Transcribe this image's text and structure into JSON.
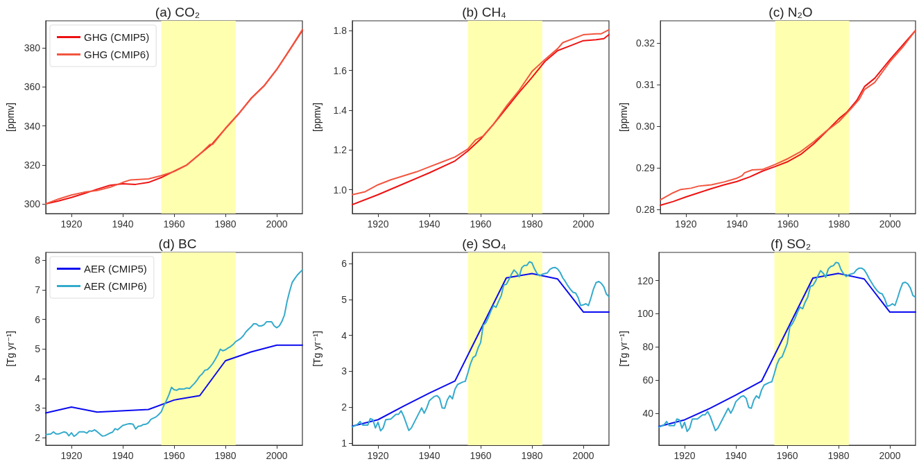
{
  "chart_data": [
    {
      "type": "line",
      "title": "(a) CO₂",
      "ylabel": "[ppmv]",
      "xlim": [
        1910,
        2010
      ],
      "xticks": [
        1920,
        1940,
        1960,
        1980,
        2000
      ],
      "ylim": [
        295,
        394
      ],
      "yticks": [
        300,
        320,
        340,
        360,
        380
      ],
      "grid": false,
      "legend": "top left",
      "marker": "none",
      "line_style": "solid",
      "bands": [
        {
          "axis": "x",
          "from": 1955,
          "to": 1984,
          "color": "#ffffb0"
        }
      ],
      "series": [
        {
          "name": "GHG (CMIP5)",
          "color": "#ee1111",
          "x": [
            1910,
            1915,
            1920,
            1925,
            1930,
            1935,
            1940,
            1945,
            1950,
            1955,
            1960,
            1965,
            1970,
            1975,
            1980,
            1985,
            1990,
            1995,
            2000,
            2005,
            2010
          ],
          "values": [
            300,
            301.5,
            303.3,
            305.3,
            307.5,
            309.5,
            310.3,
            310.0,
            311.0,
            313.5,
            316.8,
            320,
            325.5,
            331,
            338.7,
            346,
            354.2,
            360.5,
            369,
            379,
            389
          ]
        },
        {
          "name": "GHG (CMIP6)",
          "color": "#f2553f",
          "x": [
            1910,
            1915,
            1920,
            1925,
            1930,
            1935,
            1940,
            1943,
            1950,
            1955,
            1960,
            1965,
            1970,
            1974,
            1975,
            1980,
            1985,
            1990,
            1995,
            2000,
            2005,
            2010
          ],
          "values": [
            300,
            302.5,
            304.5,
            306,
            306.8,
            308.5,
            311,
            312.3,
            312.8,
            314.5,
            316.6,
            320,
            325.5,
            330.5,
            330.5,
            338.7,
            346,
            354,
            360.5,
            369,
            379,
            389.5
          ]
        }
      ]
    },
    {
      "type": "line",
      "title": "(b) CH₄",
      "ylabel": "[ppmv]",
      "xlim": [
        1910,
        2010
      ],
      "xticks": [
        1920,
        1940,
        1960,
        1980,
        2000
      ],
      "ylim": [
        0.88,
        1.85
      ],
      "yticks": [
        {
          "value": 1,
          "label": "1.0"
        },
        1.2,
        1.4,
        1.6,
        1.8
      ],
      "grid": false,
      "marker": "none",
      "line_style": "solid",
      "bands": [
        {
          "axis": "x",
          "from": 1955,
          "to": 1984,
          "color": "#ffffb0"
        }
      ],
      "series": [
        {
          "color": "#ee1111",
          "x": [
            1910,
            1920,
            1930,
            1940,
            1950,
            1955,
            1960,
            1965,
            1970,
            1975,
            1980,
            1985,
            1990,
            1995,
            2000,
            2005,
            2008,
            2010
          ],
          "values": [
            0.925,
            0.975,
            1.03,
            1.085,
            1.145,
            1.195,
            1.255,
            1.33,
            1.41,
            1.49,
            1.565,
            1.645,
            1.7,
            1.725,
            1.75,
            1.755,
            1.76,
            1.78
          ]
        },
        {
          "color": "#f2553f",
          "x": [
            1910,
            1915,
            1920,
            1925,
            1930,
            1935,
            1940,
            1945,
            1950,
            1955,
            1958,
            1961,
            1965,
            1970,
            1975,
            1980,
            1985,
            1990,
            1992,
            1995,
            2000,
            2005,
            2007,
            2010
          ],
          "values": [
            0.975,
            0.99,
            1.025,
            1.05,
            1.07,
            1.09,
            1.115,
            1.14,
            1.165,
            1.205,
            1.25,
            1.27,
            1.33,
            1.42,
            1.5,
            1.595,
            1.655,
            1.71,
            1.74,
            1.755,
            1.78,
            1.785,
            1.785,
            1.805
          ]
        }
      ]
    },
    {
      "type": "line",
      "title": "(c) N₂O",
      "ylabel": "[ppmv]",
      "xlim": [
        1910,
        2010
      ],
      "xticks": [
        1920,
        1940,
        1960,
        1980,
        2000
      ],
      "ylim": [
        0.279,
        0.3253
      ],
      "yticks": [
        0.28,
        0.29,
        {
          "value": 0.3,
          "label": "0.30"
        },
        0.31,
        0.32
      ],
      "grid": false,
      "marker": "none",
      "line_style": "solid",
      "bands": [
        {
          "axis": "x",
          "from": 1955,
          "to": 1984,
          "color": "#ffffb0"
        }
      ],
      "series": [
        {
          "color": "#ee1111",
          "x": [
            1910,
            1915,
            1920,
            1925,
            1930,
            1935,
            1940,
            1945,
            1950,
            1955,
            1960,
            1965,
            1970,
            1975,
            1980,
            1983,
            1987,
            1990,
            1994,
            2000,
            2005,
            2010
          ],
          "values": [
            0.281,
            0.2819,
            0.283,
            0.284,
            0.285,
            0.2859,
            0.2867,
            0.2878,
            0.2892,
            0.2903,
            0.2915,
            0.2932,
            0.2957,
            0.2987,
            0.3018,
            0.3033,
            0.3062,
            0.3095,
            0.3115,
            0.316,
            0.3195,
            0.323
          ]
        },
        {
          "color": "#f2553f",
          "x": [
            1910,
            1915,
            1918,
            1922,
            1925,
            1930,
            1935,
            1940,
            1942,
            1943,
            1946,
            1950,
            1955,
            1960,
            1965,
            1970,
            1975,
            1980,
            1985,
            1988,
            1990,
            1994,
            2000,
            2005,
            2010
          ],
          "values": [
            0.2823,
            0.284,
            0.2848,
            0.2851,
            0.2856,
            0.2859,
            0.2866,
            0.2875,
            0.2881,
            0.2888,
            0.2895,
            0.2896,
            0.2908,
            0.2922,
            0.2939,
            0.2962,
            0.2988,
            0.3011,
            0.3044,
            0.3065,
            0.3088,
            0.3105,
            0.3155,
            0.319,
            0.323
          ]
        }
      ]
    },
    {
      "type": "line",
      "title": "(d) BC",
      "ylabel": "[Tg yr⁻¹]",
      "xlim": [
        1910,
        2010
      ],
      "xticks": [
        1920,
        1940,
        1960,
        1980,
        2000
      ],
      "ylim": [
        1.74,
        8.27
      ],
      "yticks": [
        2,
        3,
        4,
        5,
        6,
        7,
        8
      ],
      "grid": false,
      "legend": "top left",
      "marker": "none",
      "line_style": "solid",
      "bands": [
        {
          "axis": "x",
          "from": 1955,
          "to": 1984,
          "color": "#ffffb0"
        }
      ],
      "series": [
        {
          "name": "AER (CMIP5)",
          "color": "#0a0af0",
          "x": [
            1910,
            1920,
            1930,
            1950,
            1960,
            1970,
            1980,
            1990,
            2000,
            2010
          ],
          "values": [
            2.83,
            3.03,
            2.86,
            2.95,
            3.27,
            3.42,
            4.6,
            4.9,
            5.13,
            5.13
          ]
        },
        {
          "name": "AER (CMIP6)",
          "color": "#33aacc",
          "x": [
            1910,
            1912,
            1913,
            1914,
            1915,
            1917,
            1918,
            1919,
            1920,
            1921,
            1922,
            1923,
            1925,
            1926,
            1927,
            1928,
            1929,
            1930,
            1932,
            1933,
            1935,
            1936,
            1937,
            1938,
            1940,
            1942,
            1943,
            1944,
            1945,
            1946,
            1947,
            1948,
            1949,
            1950,
            1951,
            1953,
            1954,
            1955,
            1956,
            1957,
            1958,
            1959,
            1960,
            1961,
            1962,
            1963,
            1964,
            1965,
            1966,
            1967,
            1968,
            1969,
            1970,
            1971,
            1972,
            1973,
            1974,
            1975,
            1976,
            1977,
            1978,
            1979,
            1980,
            1981,
            1982,
            1983,
            1984,
            1985,
            1986,
            1987,
            1988,
            1989,
            1990,
            1991,
            1992,
            1993,
            1994,
            1995,
            1996,
            1997,
            1998,
            1999,
            2000,
            2001,
            2002,
            2003,
            2004,
            2005,
            2006,
            2007,
            2008,
            2010
          ],
          "values": [
            2.1,
            2.12,
            2.19,
            2.12,
            2.12,
            2.19,
            2.17,
            2.06,
            2.16,
            2.04,
            2.1,
            2.19,
            2.19,
            2.15,
            2.23,
            2.21,
            2.26,
            2.2,
            2.05,
            2.06,
            2.15,
            2.18,
            2.3,
            2.26,
            2.41,
            2.46,
            2.47,
            2.45,
            2.29,
            2.38,
            2.39,
            2.44,
            2.45,
            2.5,
            2.62,
            2.7,
            2.78,
            2.87,
            3.08,
            3.25,
            3.45,
            3.7,
            3.62,
            3.6,
            3.65,
            3.64,
            3.65,
            3.68,
            3.66,
            3.75,
            3.84,
            3.95,
            4.08,
            4.16,
            4.28,
            4.3,
            4.39,
            4.5,
            4.64,
            4.8,
            4.99,
            4.94,
            4.97,
            5.03,
            5.08,
            5.15,
            5.25,
            5.3,
            5.36,
            5.45,
            5.58,
            5.67,
            5.75,
            5.85,
            5.85,
            5.78,
            5.78,
            5.82,
            5.92,
            5.92,
            5.92,
            5.78,
            5.72,
            5.78,
            5.93,
            6.15,
            6.6,
            6.95,
            7.25,
            7.38,
            7.5,
            7.68
          ]
        }
      ]
    },
    {
      "type": "line",
      "title": "(e) SO₄",
      "ylabel": "[Tg yr⁻¹]",
      "xlim": [
        1910,
        2010
      ],
      "xticks": [
        1920,
        1940,
        1960,
        1980,
        2000
      ],
      "ylim": [
        0.94,
        6.31
      ],
      "yticks": [
        1,
        2,
        3,
        4,
        5,
        6
      ],
      "grid": false,
      "marker": "none",
      "line_style": "solid",
      "bands": [
        {
          "axis": "x",
          "from": 1955,
          "to": 1984,
          "color": "#ffffb0"
        }
      ],
      "series": [
        {
          "color": "#0a0af0",
          "x": [
            1910,
            1920,
            1930,
            1940,
            1950,
            1970,
            1980,
            1990,
            2000,
            2010
          ],
          "values": [
            1.47,
            1.65,
            2.03,
            2.39,
            2.73,
            5.6,
            5.72,
            5.57,
            4.65,
            4.65
          ]
        },
        {
          "color": "#33aacc",
          "x": [
            1910,
            1912,
            1913,
            1914,
            1916,
            1917,
            1918,
            1919,
            1920,
            1921,
            1922,
            1923,
            1925,
            1927,
            1928,
            1929,
            1930,
            1932,
            1933,
            1935,
            1937,
            1938,
            1939,
            1940,
            1942,
            1943,
            1944,
            1945,
            1946,
            1947,
            1948,
            1949,
            1950,
            1951,
            1953,
            1954,
            1955,
            1956,
            1957,
            1958,
            1959,
            1960,
            1961,
            1962,
            1963,
            1964,
            1965,
            1966,
            1967,
            1968,
            1969,
            1970,
            1971,
            1972,
            1973,
            1974,
            1975,
            1976,
            1977,
            1978,
            1979,
            1980,
            1981,
            1982,
            1983,
            1984,
            1985,
            1986,
            1987,
            1988,
            1989,
            1990,
            1991,
            1992,
            1993,
            1994,
            1995,
            1996,
            1997,
            1998,
            1999,
            2000,
            2001,
            2002,
            2003,
            2004,
            2005,
            2006,
            2007,
            2008,
            2009,
            2010
          ],
          "values": [
            1.45,
            1.52,
            1.6,
            1.5,
            1.5,
            1.68,
            1.65,
            1.42,
            1.58,
            1.34,
            1.42,
            1.65,
            1.67,
            1.8,
            1.8,
            1.9,
            1.75,
            1.35,
            1.42,
            1.7,
            1.98,
            1.83,
            1.98,
            2.18,
            2.3,
            2.32,
            2.25,
            1.98,
            1.97,
            2.2,
            2.32,
            2.23,
            2.5,
            2.63,
            2.7,
            2.72,
            2.95,
            3.2,
            3.38,
            3.43,
            3.65,
            3.8,
            4.28,
            4.35,
            4.5,
            4.68,
            4.83,
            4.78,
            4.95,
            5.1,
            5.4,
            5.42,
            5.55,
            5.7,
            5.82,
            5.75,
            5.63,
            5.88,
            5.95,
            5.95,
            6.05,
            6.02,
            5.85,
            5.72,
            5.66,
            5.7,
            5.72,
            5.74,
            5.84,
            5.88,
            5.89,
            5.85,
            5.75,
            5.6,
            5.5,
            5.38,
            5.28,
            5.2,
            5.18,
            5.05,
            4.83,
            4.85,
            4.88,
            4.83,
            5.05,
            5.3,
            5.47,
            5.5,
            5.45,
            5.35,
            5.15,
            5.08
          ]
        }
      ]
    },
    {
      "type": "line",
      "title": "(f) SO₂",
      "ylabel": "[Tg yr⁻¹]",
      "xlim": [
        1910,
        2010
      ],
      "xticks": [
        1920,
        1940,
        1960,
        1980,
        2000
      ],
      "ylim": [
        20.7,
        137
      ],
      "yticks": [
        40,
        60,
        80,
        100,
        120
      ],
      "grid": false,
      "marker": "none",
      "line_style": "solid",
      "bands": [
        {
          "axis": "x",
          "from": 1955,
          "to": 1984,
          "color": "#ffffb0"
        }
      ],
      "series": [
        {
          "color": "#0a0af0",
          "x": [
            1910,
            1920,
            1930,
            1940,
            1950,
            1970,
            1980,
            1990,
            2000,
            2010
          ],
          "values": [
            32,
            36,
            43,
            51,
            59.3,
            121.5,
            124.3,
            121,
            101,
            101
          ]
        },
        {
          "color": "#33aacc",
          "x": [
            1910,
            1912,
            1913,
            1914,
            1916,
            1917,
            1918,
            1919,
            1920,
            1921,
            1922,
            1923,
            1925,
            1927,
            1928,
            1929,
            1930,
            1932,
            1933,
            1935,
            1937,
            1938,
            1939,
            1940,
            1942,
            1943,
            1944,
            1945,
            1946,
            1947,
            1948,
            1949,
            1950,
            1951,
            1953,
            1954,
            1955,
            1956,
            1957,
            1958,
            1959,
            1960,
            1961,
            1962,
            1963,
            1964,
            1965,
            1966,
            1967,
            1968,
            1969,
            1970,
            1971,
            1972,
            1973,
            1974,
            1975,
            1976,
            1977,
            1978,
            1979,
            1980,
            1981,
            1982,
            1983,
            1984,
            1985,
            1986,
            1987,
            1988,
            1989,
            1990,
            1991,
            1992,
            1993,
            1994,
            1995,
            1996,
            1997,
            1998,
            1999,
            2000,
            2001,
            2002,
            2003,
            2004,
            2005,
            2006,
            2007,
            2008,
            2009,
            2010
          ],
          "values": [
            31.5,
            33,
            35,
            32.5,
            32.5,
            36.5,
            36,
            31,
            34.5,
            29,
            31,
            36.5,
            36.5,
            39,
            39,
            41,
            38,
            29.5,
            31,
            37,
            43,
            40,
            43,
            47,
            50,
            50.5,
            49,
            43.5,
            43,
            48,
            50.5,
            49,
            54,
            57,
            58.5,
            59,
            64,
            69.5,
            73,
            74,
            78,
            82,
            92,
            94,
            97,
            101,
            104,
            103,
            107,
            110,
            116.5,
            117,
            119.5,
            123,
            126,
            124.5,
            122,
            127,
            128.5,
            129,
            131,
            130.5,
            126.5,
            124,
            122.5,
            123.5,
            124,
            124.5,
            126.5,
            127.5,
            127.5,
            126.5,
            124,
            121,
            118.5,
            116,
            114,
            112.5,
            112,
            109,
            104.5,
            105,
            106,
            105,
            109.5,
            114.5,
            118.5,
            119,
            118,
            115.5,
            111,
            110
          ]
        }
      ]
    }
  ]
}
